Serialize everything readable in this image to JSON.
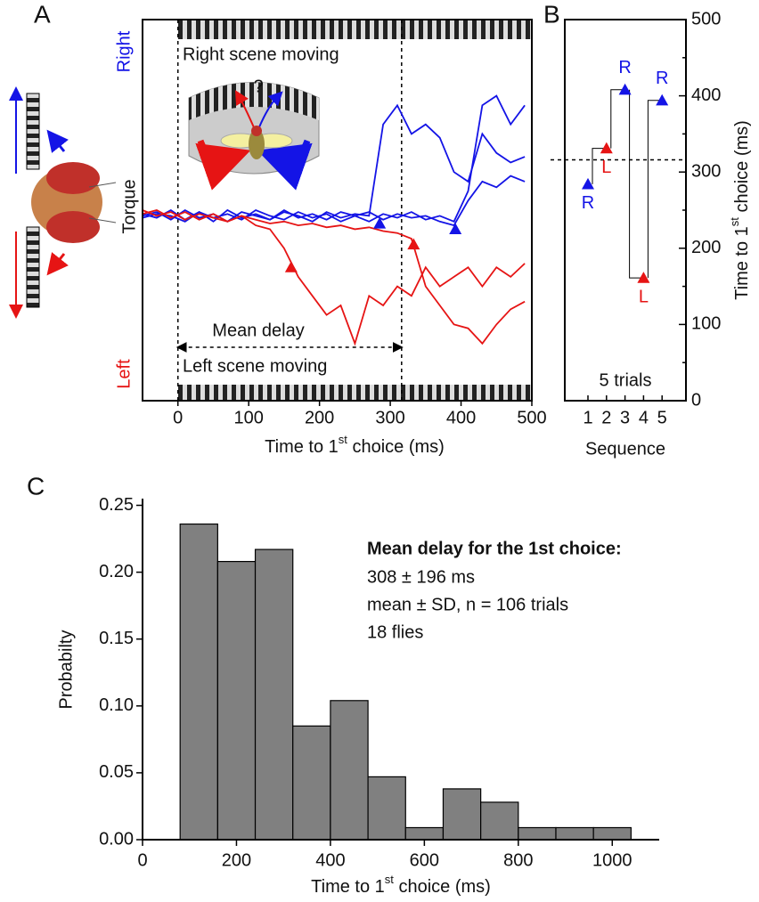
{
  "chart_data": [
    {
      "type": "line",
      "panel": "A",
      "ylabels": [
        "Right",
        "Torque",
        "Left"
      ],
      "annotations": [
        "Right scene moving",
        "Left scene moving",
        "Mean delay",
        "?"
      ],
      "xlabel": [
        "Time to 1",
        "st",
        " choice (ms)"
      ],
      "xlim": [
        -50,
        500
      ],
      "xticks": [
        0,
        100,
        200,
        300,
        400,
        500
      ],
      "ylim": [
        -100,
        100
      ],
      "vlines": [
        0,
        316
      ],
      "x": [
        -50,
        -30,
        -10,
        10,
        30,
        50,
        70,
        90,
        110,
        130,
        150,
        170,
        190,
        210,
        230,
        250,
        270,
        290,
        310,
        330,
        350,
        370,
        390,
        410,
        430,
        450,
        470,
        490
      ],
      "series": [
        {
          "color": "#1414e6",
          "values": [
            -2,
            -4,
            0,
            -5,
            -1,
            -6,
            0,
            -4,
            -2,
            -5,
            -1,
            -3,
            -6,
            -1,
            -4,
            -2,
            -3,
            45,
            55,
            40,
            45,
            38,
            20,
            15,
            40,
            30,
            25,
            28
          ]
        },
        {
          "color": "#1414e6",
          "values": [
            -3,
            -1,
            -5,
            0,
            -4,
            -2,
            -6,
            -1,
            -3,
            -5,
            0,
            -4,
            -2,
            -5,
            -1,
            -3,
            -6,
            -2,
            -4,
            -1,
            -5,
            -3,
            -6,
            10,
            55,
            60,
            45,
            55
          ]
        },
        {
          "color": "#1414e6",
          "values": [
            -4,
            -2,
            -3,
            -6,
            -1,
            -4,
            -2,
            -5,
            0,
            -3,
            -5,
            -1,
            -4,
            -2,
            -6,
            -3,
            -1,
            -5,
            -2,
            -4,
            -3,
            -6,
            -8,
            5,
            15,
            12,
            18,
            15
          ]
        },
        {
          "color": "#e61414",
          "values": [
            -2,
            0,
            -4,
            -1,
            -5,
            -2,
            -6,
            -3,
            -8,
            -10,
            -20,
            -35,
            -45,
            -55,
            -50,
            -70,
            -45,
            -50,
            -40,
            -45,
            -30,
            -40,
            -35,
            -30,
            -40,
            -30,
            -35,
            -28
          ]
        },
        {
          "color": "#e61414",
          "values": [
            0,
            -3,
            -1,
            -5,
            -2,
            -4,
            -6,
            -3,
            -5,
            -7,
            -6,
            -8,
            -7,
            -9,
            -8,
            -10,
            -9,
            -11,
            -12,
            -15,
            -40,
            -50,
            -60,
            -62,
            -70,
            -60,
            -52,
            -48
          ]
        }
      ],
      "markers": [
        {
          "color": "#1414e6",
          "x": [
            285,
            392
          ],
          "values": [
            -7,
            -10
          ]
        },
        {
          "color": "#e61414",
          "x": [
            160,
            333
          ],
          "values": [
            -30,
            -18
          ]
        }
      ]
    },
    {
      "type": "scatter",
      "panel": "B",
      "categories": [
        "1",
        "2",
        "3",
        "4",
        "5"
      ],
      "values": [
        284,
        331,
        408,
        161,
        394
      ],
      "value_text": [
        "R",
        "L",
        "R",
        "L",
        "R"
      ],
      "colors": [
        "#1414e6",
        "#e61414",
        "#1414e6",
        "#e61414",
        "#1414e6"
      ],
      "xlabel": "Sequence",
      "ylabel": [
        "Time to 1",
        "st",
        " choice (ms)"
      ],
      "note": "5 trials",
      "ylim": [
        0,
        500
      ],
      "yticks": [
        0,
        100,
        200,
        300,
        400,
        500
      ],
      "hline": 316
    },
    {
      "type": "histogram",
      "panel": "C",
      "bins": [
        80,
        160,
        240,
        320,
        400,
        480,
        560,
        640,
        720,
        800,
        880,
        960,
        1040
      ],
      "values": [
        0.236,
        0.208,
        0.217,
        0.085,
        0.104,
        0.047,
        0.009,
        0.038,
        0.028,
        0.009,
        0.009,
        0.009
      ],
      "color": "#808080",
      "xlabel": [
        "Time to 1",
        "st",
        " choice (ms)"
      ],
      "ylabel": "Probabilty",
      "annotations": [
        "Mean delay for the 1st choice:",
        "308 ± 196 ms",
        "mean ± SD, n = 106 trials",
        "18 flies"
      ],
      "xlim": [
        0,
        1100
      ],
      "xticks": [
        0,
        200,
        400,
        600,
        800,
        1000
      ],
      "ylim": [
        0,
        0.255
      ],
      "yticks": [
        {
          "value": 0,
          "label": "0.00"
        },
        0.05,
        {
          "value": 0.1,
          "label": "0.10"
        },
        0.15,
        {
          "value": 0.2,
          "label": "0.20"
        },
        0.25
      ]
    }
  ]
}
